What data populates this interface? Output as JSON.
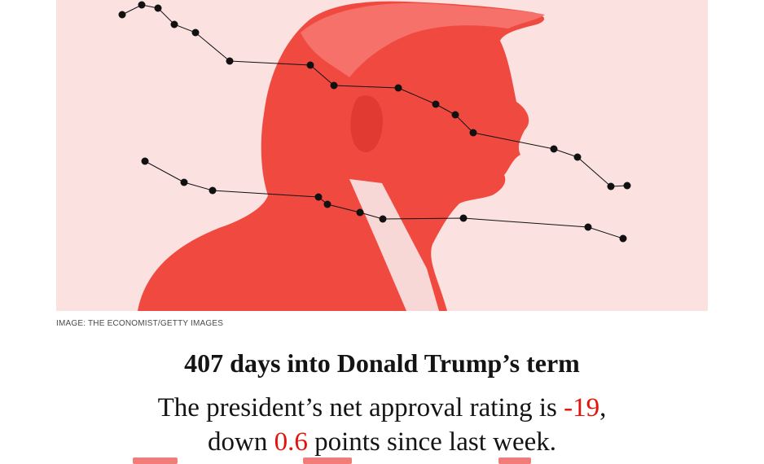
{
  "hero": {
    "image_description": "red-tinted photograph of Donald Trump in profile overlaid with two black connected-dot line traces",
    "colors": {
      "tint": "#f04a40",
      "background": "#fbe1e0",
      "line": "#111111"
    }
  },
  "credit": {
    "text": "IMAGE: THE ECONOMIST/GETTY IMAGES"
  },
  "headline": {
    "text": "407 days into Donald Trump’s term"
  },
  "summary": {
    "line1_prefix": "The president’s net approval rating is ",
    "line1_value": "-19",
    "line1_suffix": ",",
    "line2_prefix": "down ",
    "line2_value": "0.6",
    "line2_suffix": " points since last week."
  },
  "colors": {
    "accent": "#e3120b",
    "text": "#141414"
  }
}
